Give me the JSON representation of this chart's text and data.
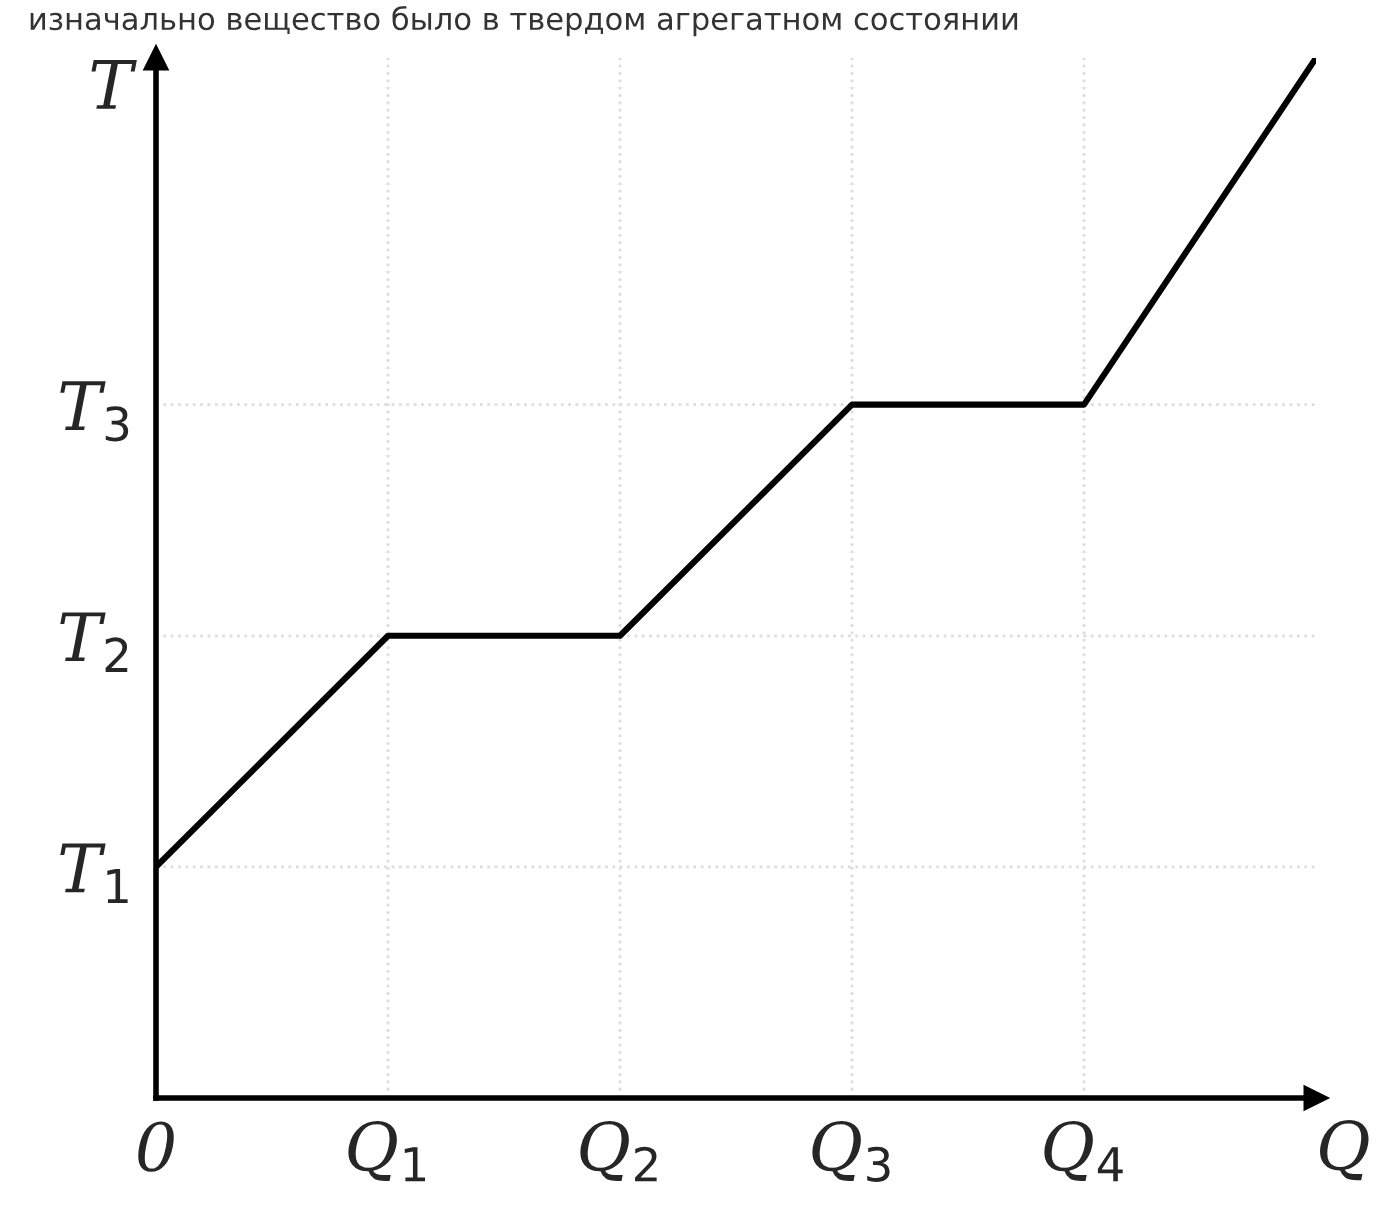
{
  "chart_data": {
    "type": "line",
    "title": "изначально вещество было в твердом агрегатном состоянии",
    "xlabel": "Q",
    "ylabel": "T",
    "x": [
      0,
      1,
      2,
      3,
      4,
      5
    ],
    "series": [
      {
        "color": "#000000",
        "values": [
          1,
          2,
          2,
          3,
          3,
          4.5
        ]
      }
    ],
    "xlim": [
      0,
      5
    ],
    "ylim": [
      0,
      4.5
    ],
    "xticks": [
      0,
      {
        "value": 1,
        "label": "Q$_{1}$"
      },
      {
        "value": 2,
        "label": "Q$_{2}$"
      },
      {
        "value": 3,
        "label": "Q$_{3}$"
      },
      {
        "value": 4,
        "label": "Q$_{4}$"
      }
    ],
    "yticks": [
      {
        "value": 1,
        "label": "T$_{1}$"
      },
      {
        "value": 2,
        "label": "T$_{2}$"
      },
      {
        "value": 3,
        "label": "T$_{3}$"
      }
    ],
    "grid": true,
    "legend": false,
    "marker": "none",
    "line_style": "solid"
  }
}
